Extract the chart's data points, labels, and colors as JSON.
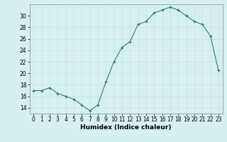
{
  "x": [
    0,
    1,
    2,
    3,
    4,
    5,
    6,
    7,
    8,
    9,
    10,
    11,
    12,
    13,
    14,
    15,
    16,
    17,
    18,
    19,
    20,
    21,
    22,
    23
  ],
  "y": [
    17,
    17,
    17.5,
    16.5,
    16,
    15.5,
    14.5,
    13.5,
    14.5,
    18.5,
    22,
    24.5,
    25.5,
    28.5,
    29,
    30.5,
    31,
    31.5,
    31,
    30,
    29,
    28.5,
    26.5,
    20.5
  ],
  "line_color": "#2e7d6e",
  "marker_color": "#2e7d6e",
  "bg_color": "#d6f0f0",
  "grid_color": "#c8e0e0",
  "xlabel": "Humidex (Indice chaleur)",
  "ylim": [
    13,
    32
  ],
  "xlim": [
    -0.5,
    23.5
  ],
  "yticks": [
    14,
    16,
    18,
    20,
    22,
    24,
    26,
    28,
    30
  ],
  "xticks": [
    0,
    1,
    2,
    3,
    4,
    5,
    6,
    7,
    8,
    9,
    10,
    11,
    12,
    13,
    14,
    15,
    16,
    17,
    18,
    19,
    20,
    21,
    22,
    23
  ],
  "xtick_labels": [
    "0",
    "1",
    "2",
    "3",
    "4",
    "5",
    "6",
    "7",
    "8",
    "9",
    "10",
    "11",
    "12",
    "13",
    "14",
    "15",
    "16",
    "17",
    "18",
    "19",
    "20",
    "21",
    "22",
    "23"
  ],
  "ytick_labels": [
    "14",
    "16",
    "18",
    "20",
    "22",
    "24",
    "26",
    "28",
    "30"
  ],
  "tick_fontsize": 5.5,
  "xlabel_fontsize": 6.5,
  "xlabel_fontweight": "bold"
}
